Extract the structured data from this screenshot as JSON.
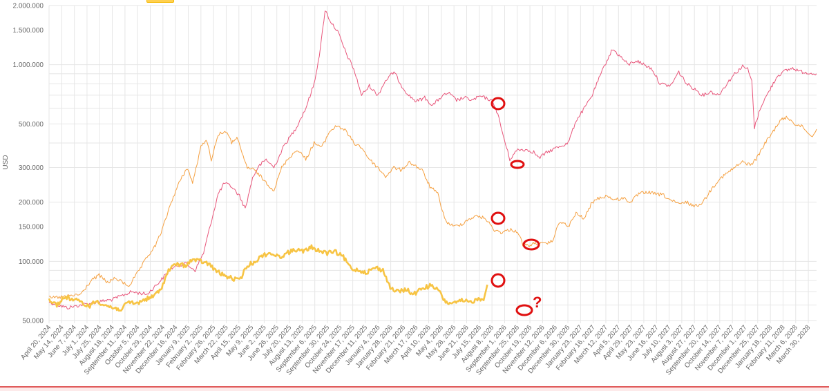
{
  "chart_data": {
    "type": "line",
    "title": "",
    "xlabel": "",
    "ylabel": "USD",
    "yscale": "log",
    "ylim": [
      50000,
      2000000
    ],
    "yticks": [
      50000,
      100000,
      150000,
      200000,
      300000,
      500000,
      1000000,
      1500000,
      2000000
    ],
    "ytick_labels": [
      "50.000",
      "100.000",
      "150.000",
      "200.000",
      "300.000",
      "500.000",
      "1.000.000",
      "1.500.000",
      "2.000.000"
    ],
    "xlim": [
      "2024-04-20",
      "2028-04-30"
    ],
    "xtick_labels": [
      "April 20, 2024",
      "May 14, 2024",
      "June 7, 2024",
      "July 1, 2024",
      "July 25, 2024",
      "August 18, 2024",
      "September 11, 2024",
      "October 5, 2024",
      "October 29, 2024",
      "November 22, 2024",
      "December 16, 2024",
      "January 9, 2025",
      "February 2, 2025",
      "February 26, 2025",
      "March 22, 2025",
      "April 15, 2025",
      "May 9, 2025",
      "June 2, 2025",
      "June 26, 2025",
      "July 20, 2025",
      "August 13, 2025",
      "September 6, 2025",
      "September 30, 2025",
      "October 24, 2025",
      "November 17, 2025",
      "December 11, 2025",
      "January 4, 2026",
      "January 28, 2026",
      "February 21, 2026",
      "March 17, 2026",
      "April 10, 2026",
      "May 4, 2026",
      "May 28, 2026",
      "June 21, 2026",
      "July 15, 2026",
      "August 8, 2026",
      "September 1, 2026",
      "September 25, 2026",
      "October 19, 2026",
      "November 12, 2026",
      "December 6, 2026",
      "December 30, 2026",
      "January 23, 2027",
      "February 16, 2027",
      "March 12, 2027",
      "April 5, 2027",
      "April 29, 2027",
      "May 23, 2027",
      "June 16, 2027",
      "July 10, 2027",
      "August 3, 2027",
      "August 27, 2027",
      "September 20, 2027",
      "October 14, 2027",
      "November 7, 2027",
      "December 1, 2027",
      "December 25, 2027",
      "January 18, 2028",
      "February 11, 2028",
      "March 6, 2028",
      "March 30, 2028"
    ],
    "grid": true,
    "series": [
      {
        "color": "#e8557a",
        "width": 1,
        "points": [
          [
            "2024-04-20",
            62000
          ],
          [
            "2024-05-25",
            58000
          ],
          [
            "2024-06-20",
            60000
          ],
          [
            "2024-07-20",
            62000
          ],
          [
            "2024-08-20",
            64000
          ],
          [
            "2024-09-25",
            70000
          ],
          [
            "2024-10-25",
            68000
          ],
          [
            "2024-11-20",
            80000
          ],
          [
            "2024-12-10",
            92000
          ],
          [
            "2025-01-05",
            98000
          ],
          [
            "2025-01-25",
            90000
          ],
          [
            "2025-02-10",
            110000
          ],
          [
            "2025-02-25",
            160000
          ],
          [
            "2025-03-10",
            220000
          ],
          [
            "2025-03-22",
            250000
          ],
          [
            "2025-04-05",
            240000
          ],
          [
            "2025-04-20",
            215000
          ],
          [
            "2025-05-01",
            185000
          ],
          [
            "2025-05-15",
            265000
          ],
          [
            "2025-05-25",
            300000
          ],
          [
            "2025-06-10",
            330000
          ],
          [
            "2025-06-25",
            300000
          ],
          [
            "2025-07-15",
            390000
          ],
          [
            "2025-08-05",
            470000
          ],
          [
            "2025-08-25",
            600000
          ],
          [
            "2025-09-10",
            800000
          ],
          [
            "2025-09-22",
            1200000
          ],
          [
            "2025-10-01",
            1900000
          ],
          [
            "2025-10-12",
            1650000
          ],
          [
            "2025-10-25",
            1480000
          ],
          [
            "2025-11-10",
            1150000
          ],
          [
            "2025-11-25",
            950000
          ],
          [
            "2025-12-10",
            700000
          ],
          [
            "2025-12-25",
            780000
          ],
          [
            "2026-01-10",
            700000
          ],
          [
            "2026-01-25",
            830000
          ],
          [
            "2026-02-10",
            920000
          ],
          [
            "2026-02-25",
            780000
          ],
          [
            "2026-03-10",
            700000
          ],
          [
            "2026-03-25",
            650000
          ],
          [
            "2026-04-10",
            680000
          ],
          [
            "2026-04-25",
            620000
          ],
          [
            "2026-05-10",
            680000
          ],
          [
            "2026-05-25",
            720000
          ],
          [
            "2026-06-10",
            660000
          ],
          [
            "2026-06-25",
            680000
          ],
          [
            "2026-07-10",
            660000
          ],
          [
            "2026-07-25",
            690000
          ],
          [
            "2026-08-10",
            670000
          ],
          [
            "2026-08-20",
            640000
          ],
          [
            "2026-08-28",
            560000
          ],
          [
            "2026-09-08",
            430000
          ],
          [
            "2026-09-20",
            330000
          ],
          [
            "2026-10-05",
            370000
          ],
          [
            "2026-10-20",
            370000
          ],
          [
            "2026-11-05",
            360000
          ],
          [
            "2026-11-15",
            335000
          ],
          [
            "2026-12-01",
            360000
          ],
          [
            "2026-12-20",
            380000
          ],
          [
            "2027-01-10",
            400000
          ],
          [
            "2027-01-25",
            520000
          ],
          [
            "2027-02-10",
            600000
          ],
          [
            "2027-02-25",
            700000
          ],
          [
            "2027-03-10",
            850000
          ],
          [
            "2027-03-25",
            1050000
          ],
          [
            "2027-04-05",
            1200000
          ],
          [
            "2027-04-20",
            1100000
          ],
          [
            "2027-05-05",
            1000000
          ],
          [
            "2027-05-20",
            1050000
          ],
          [
            "2027-06-05",
            1000000
          ],
          [
            "2027-06-20",
            950000
          ],
          [
            "2027-07-05",
            800000
          ],
          [
            "2027-07-25",
            780000
          ],
          [
            "2027-08-10",
            920000
          ],
          [
            "2027-08-25",
            800000
          ],
          [
            "2027-09-10",
            750000
          ],
          [
            "2027-09-25",
            700000
          ],
          [
            "2027-10-10",
            730000
          ],
          [
            "2027-10-25",
            700000
          ],
          [
            "2027-11-10",
            800000
          ],
          [
            "2027-11-25",
            900000
          ],
          [
            "2027-12-10",
            980000
          ],
          [
            "2027-12-20",
            950000
          ],
          [
            "2027-12-28",
            820000
          ],
          [
            "2028-01-02",
            480000
          ],
          [
            "2028-01-15",
            620000
          ],
          [
            "2028-02-01",
            750000
          ],
          [
            "2028-02-15",
            880000
          ],
          [
            "2028-03-01",
            930000
          ],
          [
            "2028-03-15",
            960000
          ],
          [
            "2028-04-01",
            920000
          ],
          [
            "2028-04-30",
            900000
          ]
        ]
      },
      {
        "color": "#f5a040",
        "width": 1,
        "points": [
          [
            "2024-04-20",
            65000
          ],
          [
            "2024-05-20",
            66000
          ],
          [
            "2024-06-20",
            68000
          ],
          [
            "2024-07-10",
            80000
          ],
          [
            "2024-07-25",
            85000
          ],
          [
            "2024-08-10",
            78000
          ],
          [
            "2024-08-25",
            82000
          ],
          [
            "2024-09-20",
            75000
          ],
          [
            "2024-10-10",
            90000
          ],
          [
            "2024-10-25",
            105000
          ],
          [
            "2024-11-10",
            120000
          ],
          [
            "2024-11-25",
            150000
          ],
          [
            "2024-12-10",
            200000
          ],
          [
            "2024-12-25",
            250000
          ],
          [
            "2025-01-10",
            300000
          ],
          [
            "2025-01-20",
            250000
          ],
          [
            "2025-02-05",
            380000
          ],
          [
            "2025-02-15",
            420000
          ],
          [
            "2025-02-25",
            330000
          ],
          [
            "2025-03-10",
            440000
          ],
          [
            "2025-03-25",
            460000
          ],
          [
            "2025-04-05",
            400000
          ],
          [
            "2025-04-15",
            430000
          ],
          [
            "2025-04-25",
            350000
          ],
          [
            "2025-05-05",
            300000
          ],
          [
            "2025-05-20",
            290000
          ],
          [
            "2025-06-05",
            260000
          ],
          [
            "2025-06-25",
            230000
          ],
          [
            "2025-07-10",
            300000
          ],
          [
            "2025-07-25",
            340000
          ],
          [
            "2025-08-10",
            370000
          ],
          [
            "2025-08-25",
            330000
          ],
          [
            "2025-09-10",
            400000
          ],
          [
            "2025-09-25",
            380000
          ],
          [
            "2025-10-10",
            460000
          ],
          [
            "2025-10-25",
            490000
          ],
          [
            "2025-11-10",
            460000
          ],
          [
            "2025-11-25",
            400000
          ],
          [
            "2025-12-10",
            380000
          ],
          [
            "2025-12-25",
            330000
          ],
          [
            "2026-01-10",
            300000
          ],
          [
            "2026-01-25",
            270000
          ],
          [
            "2026-02-10",
            300000
          ],
          [
            "2026-02-25",
            290000
          ],
          [
            "2026-03-10",
            320000
          ],
          [
            "2026-03-20",
            310000
          ],
          [
            "2026-04-05",
            290000
          ],
          [
            "2026-04-20",
            240000
          ],
          [
            "2026-05-05",
            220000
          ],
          [
            "2026-05-20",
            160000
          ],
          [
            "2026-06-05",
            150000
          ],
          [
            "2026-06-20",
            155000
          ],
          [
            "2026-07-05",
            165000
          ],
          [
            "2026-07-20",
            170000
          ],
          [
            "2026-08-05",
            165000
          ],
          [
            "2026-08-20",
            145000
          ],
          [
            "2026-09-05",
            140000
          ],
          [
            "2026-09-20",
            145000
          ],
          [
            "2026-10-05",
            142000
          ],
          [
            "2026-10-15",
            122000
          ],
          [
            "2026-10-25",
            120000
          ],
          [
            "2026-11-10",
            124000
          ],
          [
            "2026-11-25",
            122000
          ],
          [
            "2026-12-10",
            126000
          ],
          [
            "2026-12-25",
            160000
          ],
          [
            "2027-01-10",
            150000
          ],
          [
            "2027-01-25",
            175000
          ],
          [
            "2027-02-10",
            165000
          ],
          [
            "2027-02-25",
            200000
          ],
          [
            "2027-03-10",
            210000
          ],
          [
            "2027-03-25",
            215000
          ],
          [
            "2027-04-10",
            205000
          ],
          [
            "2027-04-25",
            210000
          ],
          [
            "2027-05-10",
            200000
          ],
          [
            "2027-05-25",
            220000
          ],
          [
            "2027-06-10",
            225000
          ],
          [
            "2027-06-25",
            220000
          ],
          [
            "2027-07-10",
            218000
          ],
          [
            "2027-07-25",
            205000
          ],
          [
            "2027-08-10",
            195000
          ],
          [
            "2027-08-25",
            200000
          ],
          [
            "2027-09-10",
            190000
          ],
          [
            "2027-09-25",
            200000
          ],
          [
            "2027-10-10",
            230000
          ],
          [
            "2027-10-25",
            260000
          ],
          [
            "2027-11-10",
            280000
          ],
          [
            "2027-11-25",
            300000
          ],
          [
            "2027-12-10",
            320000
          ],
          [
            "2027-12-25",
            310000
          ],
          [
            "2028-01-05",
            330000
          ],
          [
            "2028-01-20",
            390000
          ],
          [
            "2028-02-05",
            450000
          ],
          [
            "2028-02-20",
            520000
          ],
          [
            "2028-03-05",
            540000
          ],
          [
            "2028-03-20",
            500000
          ],
          [
            "2028-04-05",
            480000
          ],
          [
            "2028-04-20",
            430000
          ],
          [
            "2028-04-30",
            470000
          ]
        ]
      },
      {
        "color": "#f7c444",
        "width": 2.6,
        "points": [
          [
            "2024-04-20",
            64000
          ],
          [
            "2024-05-05",
            60000
          ],
          [
            "2024-05-20",
            66000
          ],
          [
            "2024-06-05",
            64000
          ],
          [
            "2024-06-20",
            62000
          ],
          [
            "2024-07-05",
            59000
          ],
          [
            "2024-07-20",
            63000
          ],
          [
            "2024-08-05",
            60000
          ],
          [
            "2024-08-20",
            58000
          ],
          [
            "2024-09-05",
            57000
          ],
          [
            "2024-09-20",
            62000
          ],
          [
            "2024-10-05",
            61000
          ],
          [
            "2024-10-20",
            64000
          ],
          [
            "2024-11-05",
            66000
          ],
          [
            "2024-11-20",
            72000
          ],
          [
            "2024-12-05",
            90000
          ],
          [
            "2024-12-20",
            97000
          ],
          [
            "2025-01-05",
            95000
          ],
          [
            "2025-01-20",
            102000
          ],
          [
            "2025-02-05",
            100000
          ],
          [
            "2025-02-20",
            97000
          ],
          [
            "2025-03-05",
            90000
          ],
          [
            "2025-03-20",
            85000
          ],
          [
            "2025-04-05",
            82000
          ],
          [
            "2025-04-20",
            80000
          ],
          [
            "2025-05-05",
            95000
          ],
          [
            "2025-05-20",
            100000
          ],
          [
            "2025-06-05",
            108000
          ],
          [
            "2025-06-20",
            110000
          ],
          [
            "2025-07-05",
            105000
          ],
          [
            "2025-07-20",
            110000
          ],
          [
            "2025-08-05",
            115000
          ],
          [
            "2025-08-20",
            112000
          ],
          [
            "2025-09-05",
            118000
          ],
          [
            "2025-09-20",
            113000
          ],
          [
            "2025-10-05",
            110000
          ],
          [
            "2025-10-20",
            112000
          ],
          [
            "2025-11-05",
            105000
          ],
          [
            "2025-11-20",
            92000
          ],
          [
            "2025-12-05",
            90000
          ],
          [
            "2025-12-20",
            88000
          ],
          [
            "2026-01-05",
            93000
          ],
          [
            "2026-01-20",
            90000
          ],
          [
            "2026-02-05",
            72000
          ],
          [
            "2026-02-20",
            70000
          ],
          [
            "2026-03-05",
            72000
          ],
          [
            "2026-03-20",
            68000
          ],
          [
            "2026-04-05",
            73000
          ],
          [
            "2026-04-20",
            75000
          ],
          [
            "2026-05-05",
            72000
          ],
          [
            "2026-05-20",
            62000
          ],
          [
            "2026-06-05",
            61000
          ],
          [
            "2026-06-20",
            63000
          ],
          [
            "2026-07-05",
            62000
          ],
          [
            "2026-07-20",
            64000
          ],
          [
            "2026-08-01",
            65000
          ],
          [
            "2026-08-08",
            76000
          ]
        ]
      }
    ]
  },
  "annotations": {
    "question_mark": "?"
  }
}
